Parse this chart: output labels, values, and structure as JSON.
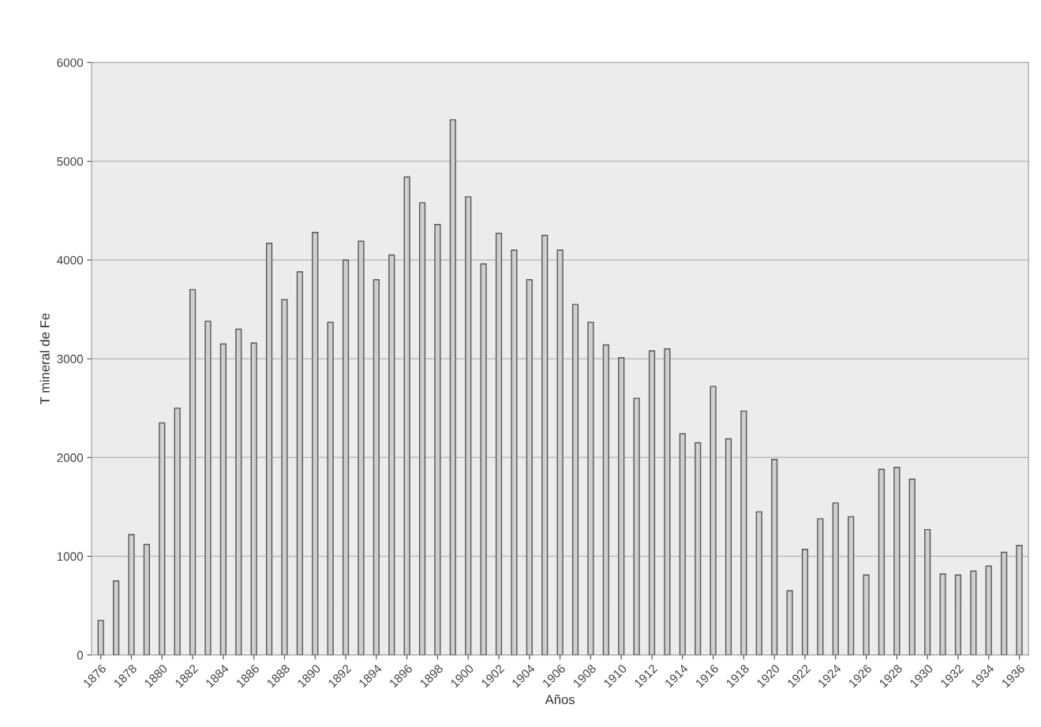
{
  "chart_data": {
    "type": "bar",
    "xlabel": "Años",
    "ylabel": "T mineral de Fe",
    "categories": [
      "1876",
      null,
      "1878",
      null,
      "1880",
      null,
      "1882",
      null,
      "1884",
      null,
      "1886",
      null,
      "1888",
      null,
      "1890",
      null,
      "1892",
      null,
      "1894",
      null,
      "1896",
      null,
      "1898",
      null,
      "1900",
      null,
      "1902",
      null,
      "1904",
      null,
      "1906",
      null,
      "1908",
      null,
      "1910",
      null,
      "1912",
      null,
      "1914",
      null,
      "1916",
      null,
      "1918",
      null,
      "1920",
      null,
      "1922",
      null,
      "1924",
      null,
      "1926",
      null,
      "1928",
      null,
      "1930",
      null,
      "1932",
      null,
      "1934",
      null,
      "1936"
    ],
    "values": [
      350,
      750,
      1220,
      1120,
      2350,
      2500,
      3700,
      3380,
      3150,
      3300,
      3160,
      4170,
      3600,
      3880,
      4280,
      3370,
      4000,
      4190,
      3800,
      4050,
      4840,
      4580,
      4360,
      5420,
      4640,
      3960,
      4270,
      4100,
      3800,
      4250,
      4100,
      3550,
      3370,
      3140,
      3010,
      2600,
      3080,
      3100,
      2240,
      2150,
      2720,
      2190,
      2470,
      1450,
      1980,
      650,
      1070,
      1380,
      1540,
      1400,
      810,
      1880,
      1900,
      1780,
      1270,
      820,
      810,
      850,
      900,
      1040,
      1110
    ],
    "color": "#cfcfcf",
    "ylim": [
      0,
      6000
    ],
    "yticks": [
      0,
      1000,
      2000,
      3000,
      4000,
      5000,
      6000
    ],
    "grid": "y",
    "legend": false
  }
}
